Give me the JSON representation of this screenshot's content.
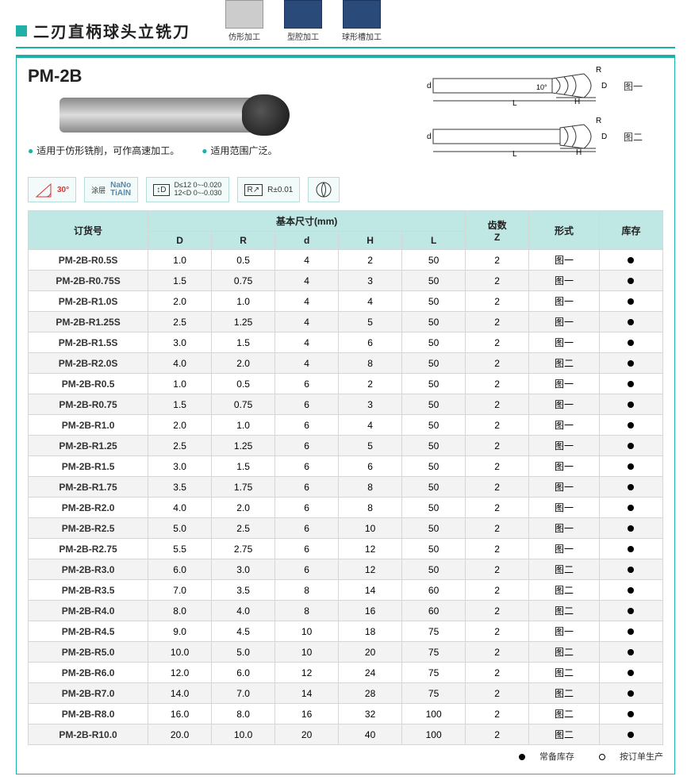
{
  "title": "二刃直柄球头立铣刀",
  "apps": [
    {
      "label": "仿形加工"
    },
    {
      "label": "型腔加工"
    },
    {
      "label": "球形槽加工"
    }
  ],
  "model": "PM-2B",
  "note1": "适用于仿形铣削，可作高速加工。",
  "note2": "适用范围广泛。",
  "diag1_label": "图一",
  "diag2_label": "图二",
  "diag_letters": {
    "d": "d",
    "L": "L",
    "H": "H",
    "D": "D",
    "R": "R",
    "angle": "10°"
  },
  "badges": {
    "angle": "30°",
    "coating_top": "NaNo",
    "coating_bot": "TiAlN",
    "coating_label": "涂层",
    "tol_d1": "D≤12 0~-0.020",
    "tol_d2": "12<D  0~-0.030",
    "tol_d_sym": "D",
    "tol_r_sym": "R",
    "tol_r": "R±0.01"
  },
  "table": {
    "colgroup_label": "基本尺寸(mm)",
    "headers": {
      "pn": "订货号",
      "D": "D",
      "R": "R",
      "d": "d",
      "H": "H",
      "L": "L",
      "Z_top": "齿数",
      "Z_bot": "Z",
      "form": "形式",
      "stock": "库存"
    },
    "widths_pct": [
      17,
      9,
      9,
      9,
      9,
      9,
      9,
      10,
      9
    ],
    "rows": [
      {
        "pn": "PM-2B-R0.5S",
        "D": "1.0",
        "R": "0.5",
        "d": "4",
        "H": "2",
        "L": "50",
        "Z": "2",
        "form": "图一",
        "stock": "●"
      },
      {
        "pn": "PM-2B-R0.75S",
        "D": "1.5",
        "R": "0.75",
        "d": "4",
        "H": "3",
        "L": "50",
        "Z": "2",
        "form": "图一",
        "stock": "●"
      },
      {
        "pn": "PM-2B-R1.0S",
        "D": "2.0",
        "R": "1.0",
        "d": "4",
        "H": "4",
        "L": "50",
        "Z": "2",
        "form": "图一",
        "stock": "●"
      },
      {
        "pn": "PM-2B-R1.25S",
        "D": "2.5",
        "R": "1.25",
        "d": "4",
        "H": "5",
        "L": "50",
        "Z": "2",
        "form": "图一",
        "stock": "●"
      },
      {
        "pn": "PM-2B-R1.5S",
        "D": "3.0",
        "R": "1.5",
        "d": "4",
        "H": "6",
        "L": "50",
        "Z": "2",
        "form": "图一",
        "stock": "●"
      },
      {
        "pn": "PM-2B-R2.0S",
        "D": "4.0",
        "R": "2.0",
        "d": "4",
        "H": "8",
        "L": "50",
        "Z": "2",
        "form": "图二",
        "stock": "●"
      },
      {
        "pn": "PM-2B-R0.5",
        "D": "1.0",
        "R": "0.5",
        "d": "6",
        "H": "2",
        "L": "50",
        "Z": "2",
        "form": "图一",
        "stock": "●"
      },
      {
        "pn": "PM-2B-R0.75",
        "D": "1.5",
        "R": "0.75",
        "d": "6",
        "H": "3",
        "L": "50",
        "Z": "2",
        "form": "图一",
        "stock": "●"
      },
      {
        "pn": "PM-2B-R1.0",
        "D": "2.0",
        "R": "1.0",
        "d": "6",
        "H": "4",
        "L": "50",
        "Z": "2",
        "form": "图一",
        "stock": "●"
      },
      {
        "pn": "PM-2B-R1.25",
        "D": "2.5",
        "R": "1.25",
        "d": "6",
        "H": "5",
        "L": "50",
        "Z": "2",
        "form": "图一",
        "stock": "●"
      },
      {
        "pn": "PM-2B-R1.5",
        "D": "3.0",
        "R": "1.5",
        "d": "6",
        "H": "6",
        "L": "50",
        "Z": "2",
        "form": "图一",
        "stock": "●"
      },
      {
        "pn": "PM-2B-R1.75",
        "D": "3.5",
        "R": "1.75",
        "d": "6",
        "H": "8",
        "L": "50",
        "Z": "2",
        "form": "图一",
        "stock": "●"
      },
      {
        "pn": "PM-2B-R2.0",
        "D": "4.0",
        "R": "2.0",
        "d": "6",
        "H": "8",
        "L": "50",
        "Z": "2",
        "form": "图一",
        "stock": "●"
      },
      {
        "pn": "PM-2B-R2.5",
        "D": "5.0",
        "R": "2.5",
        "d": "6",
        "H": "10",
        "L": "50",
        "Z": "2",
        "form": "图一",
        "stock": "●"
      },
      {
        "pn": "PM-2B-R2.75",
        "D": "5.5",
        "R": "2.75",
        "d": "6",
        "H": "12",
        "L": "50",
        "Z": "2",
        "form": "图一",
        "stock": "●"
      },
      {
        "pn": "PM-2B-R3.0",
        "D": "6.0",
        "R": "3.0",
        "d": "6",
        "H": "12",
        "L": "50",
        "Z": "2",
        "form": "图二",
        "stock": "●"
      },
      {
        "pn": "PM-2B-R3.5",
        "D": "7.0",
        "R": "3.5",
        "d": "8",
        "H": "14",
        "L": "60",
        "Z": "2",
        "form": "图二",
        "stock": "●"
      },
      {
        "pn": "PM-2B-R4.0",
        "D": "8.0",
        "R": "4.0",
        "d": "8",
        "H": "16",
        "L": "60",
        "Z": "2",
        "form": "图二",
        "stock": "●"
      },
      {
        "pn": "PM-2B-R4.5",
        "D": "9.0",
        "R": "4.5",
        "d": "10",
        "H": "18",
        "L": "75",
        "Z": "2",
        "form": "图一",
        "stock": "●"
      },
      {
        "pn": "PM-2B-R5.0",
        "D": "10.0",
        "R": "5.0",
        "d": "10",
        "H": "20",
        "L": "75",
        "Z": "2",
        "form": "图二",
        "stock": "●"
      },
      {
        "pn": "PM-2B-R6.0",
        "D": "12.0",
        "R": "6.0",
        "d": "12",
        "H": "24",
        "L": "75",
        "Z": "2",
        "form": "图二",
        "stock": "●"
      },
      {
        "pn": "PM-2B-R7.0",
        "D": "14.0",
        "R": "7.0",
        "d": "14",
        "H": "28",
        "L": "75",
        "Z": "2",
        "form": "图二",
        "stock": "●"
      },
      {
        "pn": "PM-2B-R8.0",
        "D": "16.0",
        "R": "8.0",
        "d": "16",
        "H": "32",
        "L": "100",
        "Z": "2",
        "form": "图二",
        "stock": "●"
      },
      {
        "pn": "PM-2B-R10.0",
        "D": "20.0",
        "R": "10.0",
        "d": "20",
        "H": "40",
        "L": "100",
        "Z": "2",
        "form": "图二",
        "stock": "●"
      }
    ]
  },
  "legend": {
    "in_stock": "常备库存",
    "made_to_order": "按订单生产"
  },
  "colors": {
    "accent": "#1fb0a8",
    "header_bg": "#bfe7e3",
    "row_alt": "#f3f3f3",
    "border": "#d6d6d6"
  }
}
